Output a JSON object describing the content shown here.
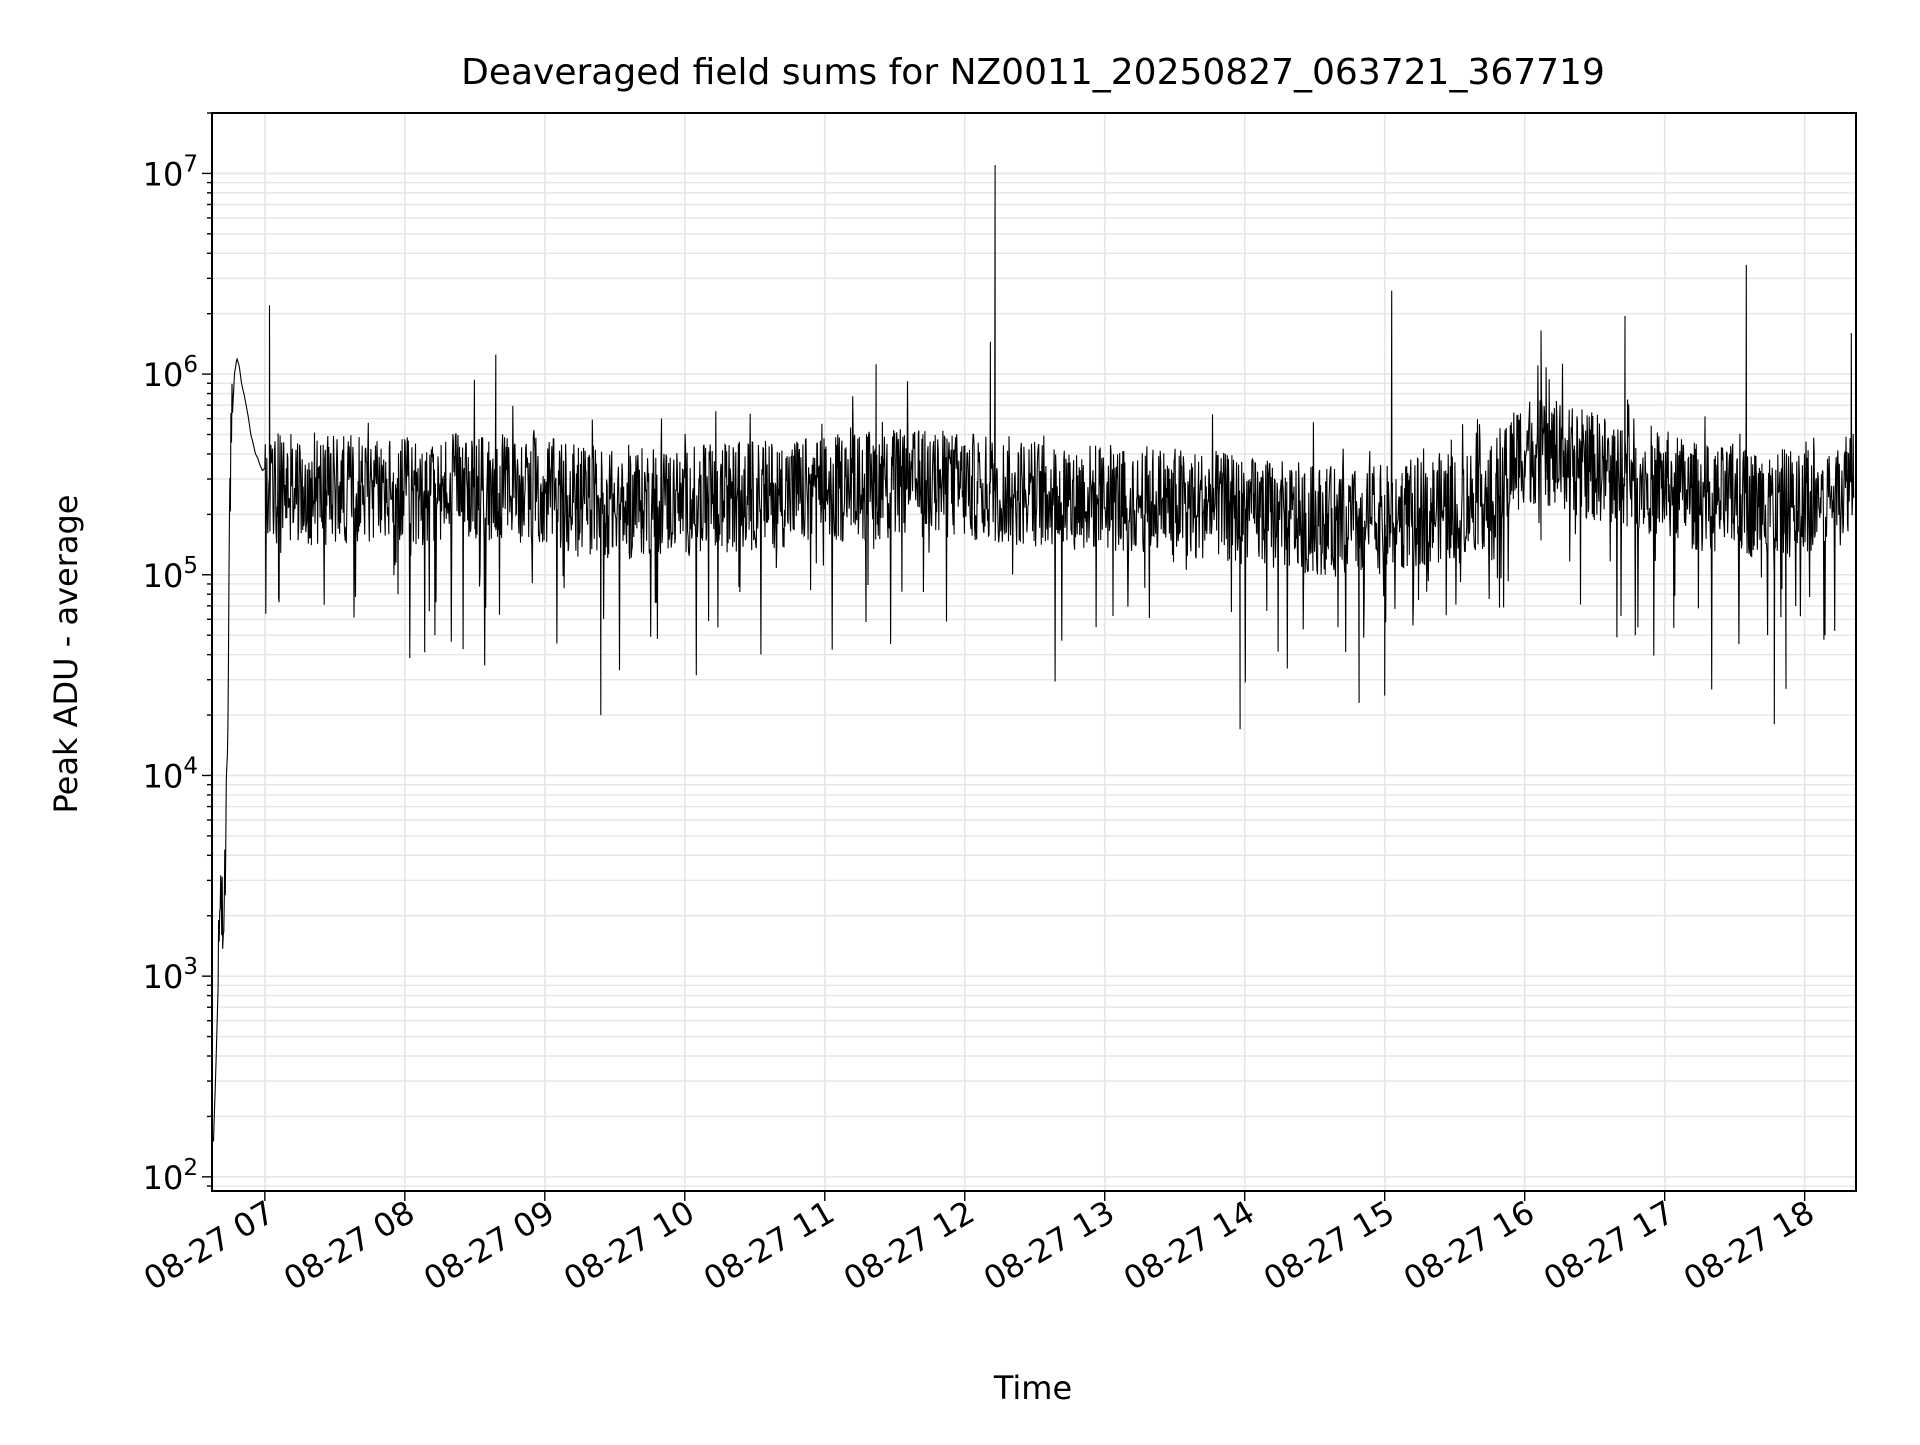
{
  "chart_data": {
    "type": "line",
    "title": "Deaveraged field sums for NZ0011_20250827_063721_367719",
    "xlabel": "Time",
    "ylabel": "Peak ADU - average",
    "yscale": "log",
    "xlim": [
      "2025-08-27 06:37:21",
      "2025-08-27 18:22:00"
    ],
    "ylim": [
      85,
      20000000
    ],
    "grid": true,
    "grid_minor": true,
    "line_color": "#000000",
    "grid_color": "#e6e6e6",
    "x_ticks": [
      {
        "value": "2025-08-27 07:00",
        "label": "08-27 07"
      },
      {
        "value": "2025-08-27 08:00",
        "label": "08-27 08"
      },
      {
        "value": "2025-08-27 09:00",
        "label": "08-27 09"
      },
      {
        "value": "2025-08-27 10:00",
        "label": "08-27 10"
      },
      {
        "value": "2025-08-27 11:00",
        "label": "08-27 11"
      },
      {
        "value": "2025-08-27 12:00",
        "label": "08-27 12"
      },
      {
        "value": "2025-08-27 13:00",
        "label": "08-27 13"
      },
      {
        "value": "2025-08-27 14:00",
        "label": "08-27 14"
      },
      {
        "value": "2025-08-27 15:00",
        "label": "08-27 15"
      },
      {
        "value": "2025-08-27 16:00",
        "label": "08-27 16"
      },
      {
        "value": "2025-08-27 17:00",
        "label": "08-27 17"
      },
      {
        "value": "2025-08-27 18:00",
        "label": "08-27 18"
      }
    ],
    "y_ticks": [
      {
        "value": 100,
        "base": "10",
        "exp": "2"
      },
      {
        "value": 1000,
        "base": "10",
        "exp": "3"
      },
      {
        "value": 10000,
        "base": "10",
        "exp": "4"
      },
      {
        "value": 100000,
        "base": "10",
        "exp": "5"
      },
      {
        "value": 1000000,
        "base": "10",
        "exp": "6"
      },
      {
        "value": 10000000,
        "base": "10",
        "exp": "7"
      }
    ],
    "series": [
      {
        "x": [
          "2025-08-27 06:38",
          "2025-08-27 06:39",
          "2025-08-27 06:40",
          "2025-08-27 06:41",
          "2025-08-27 06:42",
          "2025-08-27 06:43",
          "2025-08-27 06:44",
          "2025-08-27 06:45",
          "2025-08-27 06:46",
          "2025-08-27 06:47",
          "2025-08-27 06:48",
          "2025-08-27 06:49",
          "2025-08-27 06:50",
          "2025-08-27 06:51",
          "2025-08-27 06:52",
          "2025-08-27 06:53",
          "2025-08-27 06:54",
          "2025-08-27 06:55",
          "2025-08-27 06:56",
          "2025-08-27 06:57",
          "2025-08-27 06:58",
          "2025-08-27 06:59",
          "2025-08-27 07:00",
          "2025-08-27 07:01",
          "2025-08-27 07:02",
          "2025-08-27 07:03",
          "2025-08-27 07:05",
          "2025-08-27 07:10",
          "2025-08-27 07:15",
          "2025-08-27 07:30",
          "2025-08-27 07:45",
          "2025-08-27 08:00",
          "2025-08-27 08:15",
          "2025-08-27 08:30",
          "2025-08-27 08:45",
          "2025-08-27 09:00",
          "2025-08-27 09:15",
          "2025-08-27 09:30",
          "2025-08-27 09:45",
          "2025-08-27 10:00",
          "2025-08-27 10:15",
          "2025-08-27 10:30",
          "2025-08-27 10:45",
          "2025-08-27 11:00",
          "2025-08-27 11:15",
          "2025-08-27 11:30",
          "2025-08-27 11:45",
          "2025-08-27 12:00",
          "2025-08-27 12:15",
          "2025-08-27 12:30",
          "2025-08-27 12:45",
          "2025-08-27 13:00",
          "2025-08-27 13:15",
          "2025-08-27 13:30",
          "2025-08-27 13:45",
          "2025-08-27 14:00",
          "2025-08-27 14:15",
          "2025-08-27 14:30",
          "2025-08-27 14:45",
          "2025-08-27 15:00",
          "2025-08-27 15:15",
          "2025-08-27 15:30",
          "2025-08-27 15:45",
          "2025-08-27 16:00",
          "2025-08-27 16:15",
          "2025-08-27 16:30",
          "2025-08-27 16:45",
          "2025-08-27 17:00",
          "2025-08-27 17:15",
          "2025-08-27 17:30",
          "2025-08-27 17:45",
          "2025-08-27 18:00",
          "2025-08-27 18:15",
          "2025-08-27 18:21"
        ],
        "y": [
          150,
          350,
          900,
          3000,
          1500,
          3500,
          20000,
          250000,
          600000,
          1000000,
          1200000,
          1100000,
          900000,
          800000,
          700000,
          600000,
          500000,
          450000,
          400000,
          380000,
          350000,
          330000,
          340000,
          320000,
          300000,
          310000,
          330000,
          320000,
          300000,
          310000,
          320000,
          300000,
          310000,
          320000,
          310000,
          300000,
          280000,
          260000,
          270000,
          270000,
          280000,
          290000,
          300000,
          310000,
          320000,
          330000,
          330000,
          320000,
          310000,
          300000,
          290000,
          280000,
          280000,
          270000,
          260000,
          240000,
          230000,
          220000,
          210000,
          220000,
          240000,
          260000,
          300000,
          500000,
          450000,
          400000,
          380000,
          330000,
          280000,
          270000,
          260000,
          270000,
          300000,
          400000
        ]
      }
    ],
    "spikes": [
      {
        "x": "2025-08-27 07:02",
        "y": 2200000
      },
      {
        "x": "2025-08-27 08:39",
        "y": 1250000
      },
      {
        "x": "2025-08-27 11:22",
        "y": 1120000
      },
      {
        "x": "2025-08-27 12:13",
        "y": 11000000
      },
      {
        "x": "2025-08-27 12:11",
        "y": 1450000
      },
      {
        "x": "2025-08-27 15:03",
        "y": 2600000
      },
      {
        "x": "2025-08-27 16:07",
        "y": 1650000
      },
      {
        "x": "2025-08-27 16:43",
        "y": 1950000
      },
      {
        "x": "2025-08-27 17:35",
        "y": 3500000
      },
      {
        "x": "2025-08-27 18:20",
        "y": 1600000
      }
    ],
    "dips": [
      {
        "x": "2025-08-27 09:24",
        "y": 20000
      },
      {
        "x": "2025-08-27 13:58",
        "y": 17000
      },
      {
        "x": "2025-08-27 14:49",
        "y": 23000
      },
      {
        "x": "2025-08-27 15:00",
        "y": 25000
      },
      {
        "x": "2025-08-27 17:47",
        "y": 18000
      },
      {
        "x": "2025-08-27 17:52",
        "y": 27000
      }
    ]
  }
}
